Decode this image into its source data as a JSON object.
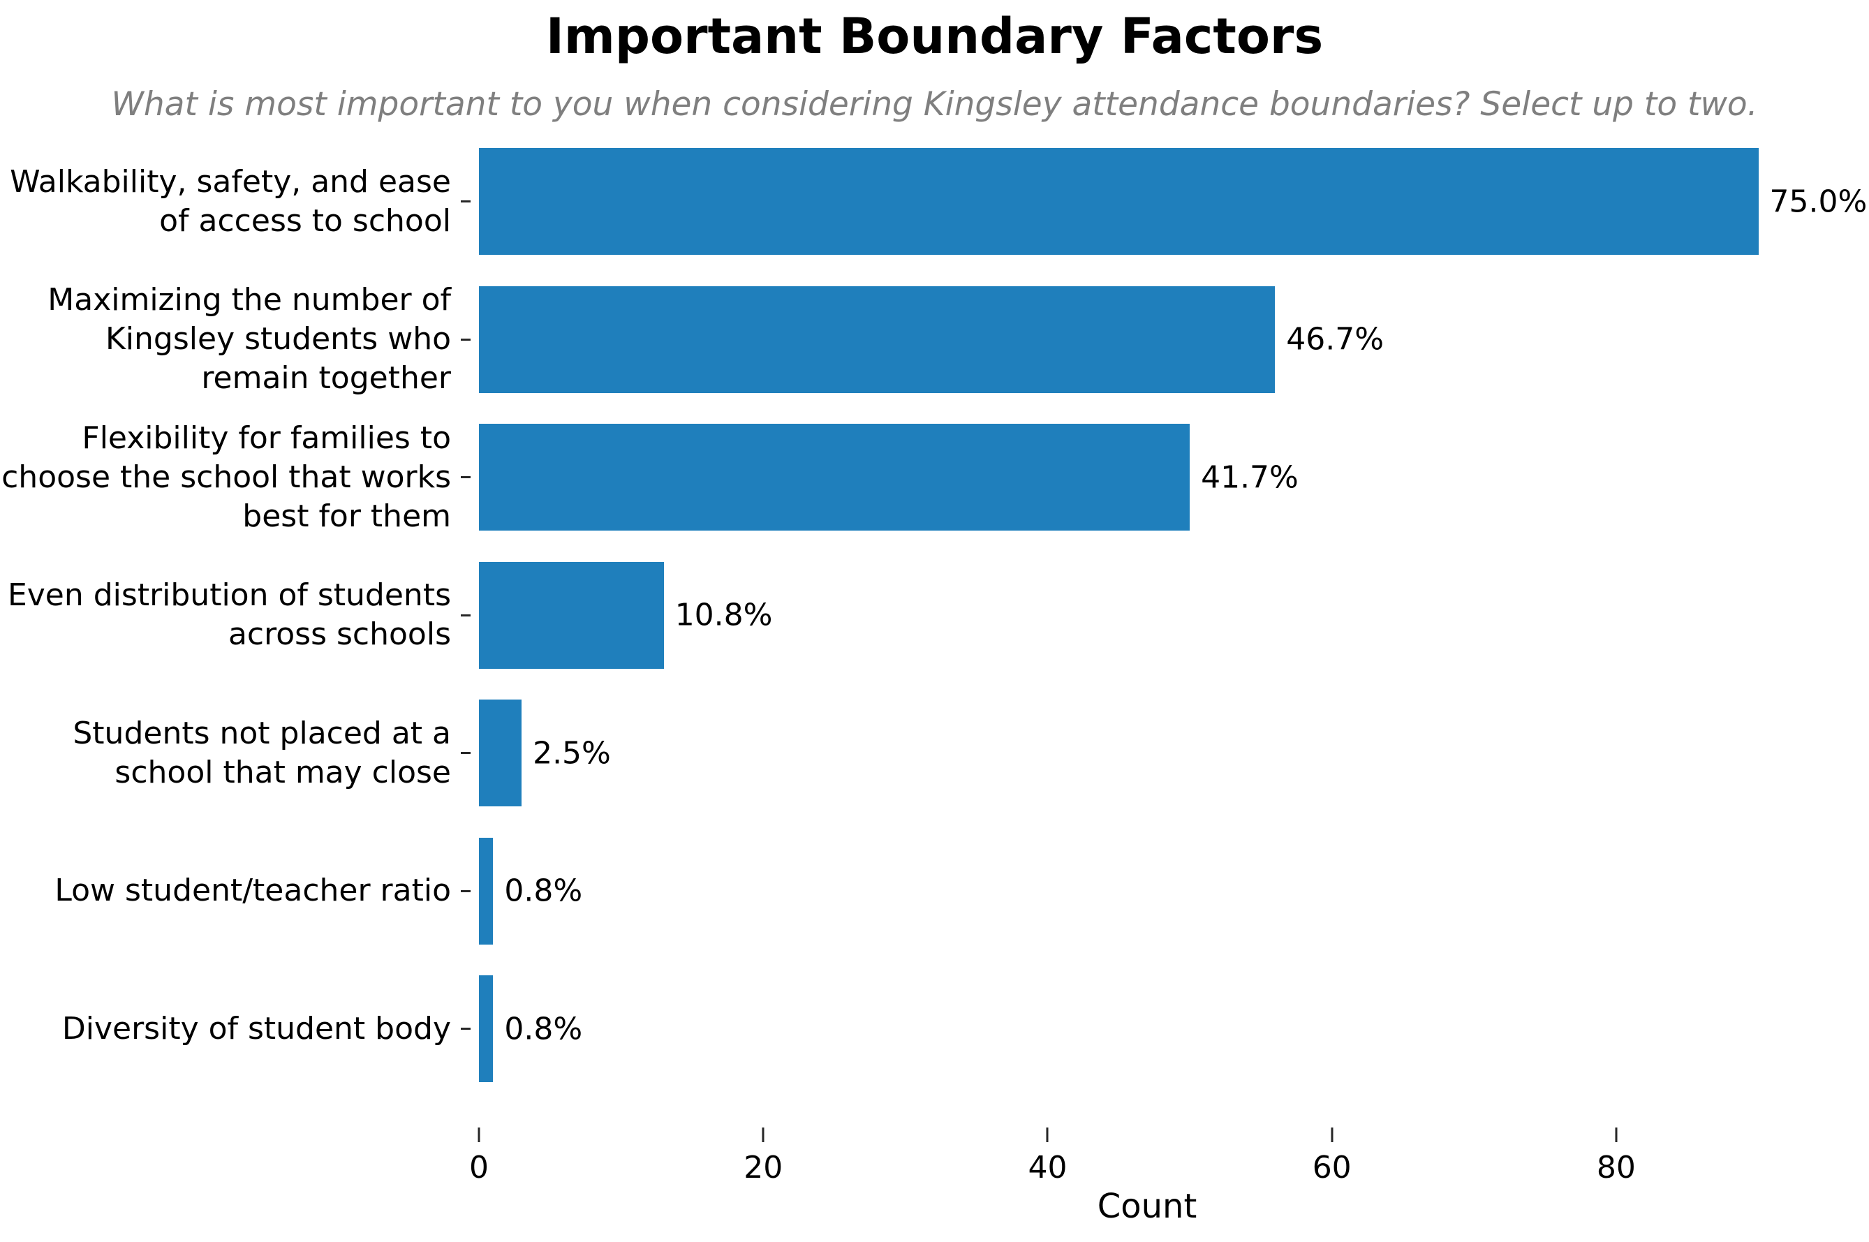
{
  "title": "Important Boundary Factors",
  "subtitle": "What is most important to you when considering Kingsley attendance boundaries? Select up to two.",
  "colors": {
    "bar": "#1f7fbc",
    "subtitle_text": "#7f7f7f",
    "tick": "#262626",
    "text": "#000000",
    "background": "#ffffff"
  },
  "chart_data": {
    "type": "bar",
    "orientation": "horizontal",
    "title": "Important Boundary Factors",
    "subtitle": "What is most important to you when considering Kingsley attendance boundaries? Select up to two.",
    "categories": [
      "Walkability, safety, and ease of access to school",
      "Maximizing the number of Kingsley students who remain together",
      "Flexibility for families to choose the school that works best for them",
      "Even distribution of students across schools",
      "Students not placed at a school that may close",
      "Low student/teacher ratio",
      "Diversity of student body"
    ],
    "values": [
      90,
      56,
      50,
      13,
      3,
      1,
      1
    ],
    "percentages": [
      75.0,
      46.7,
      41.7,
      10.8,
      2.5,
      0.8,
      0.8
    ],
    "value_labels": [
      "75.0%",
      "46.7%",
      "41.7%",
      "10.8%",
      "2.5%",
      "0.8%",
      "0.8%"
    ],
    "xlabel": "Count",
    "ylabel": "",
    "xticks": [
      0,
      20,
      40,
      60,
      80
    ],
    "xlim": [
      0,
      94
    ],
    "grid": false,
    "legend": null,
    "bar_color": "#1f7fbc"
  }
}
